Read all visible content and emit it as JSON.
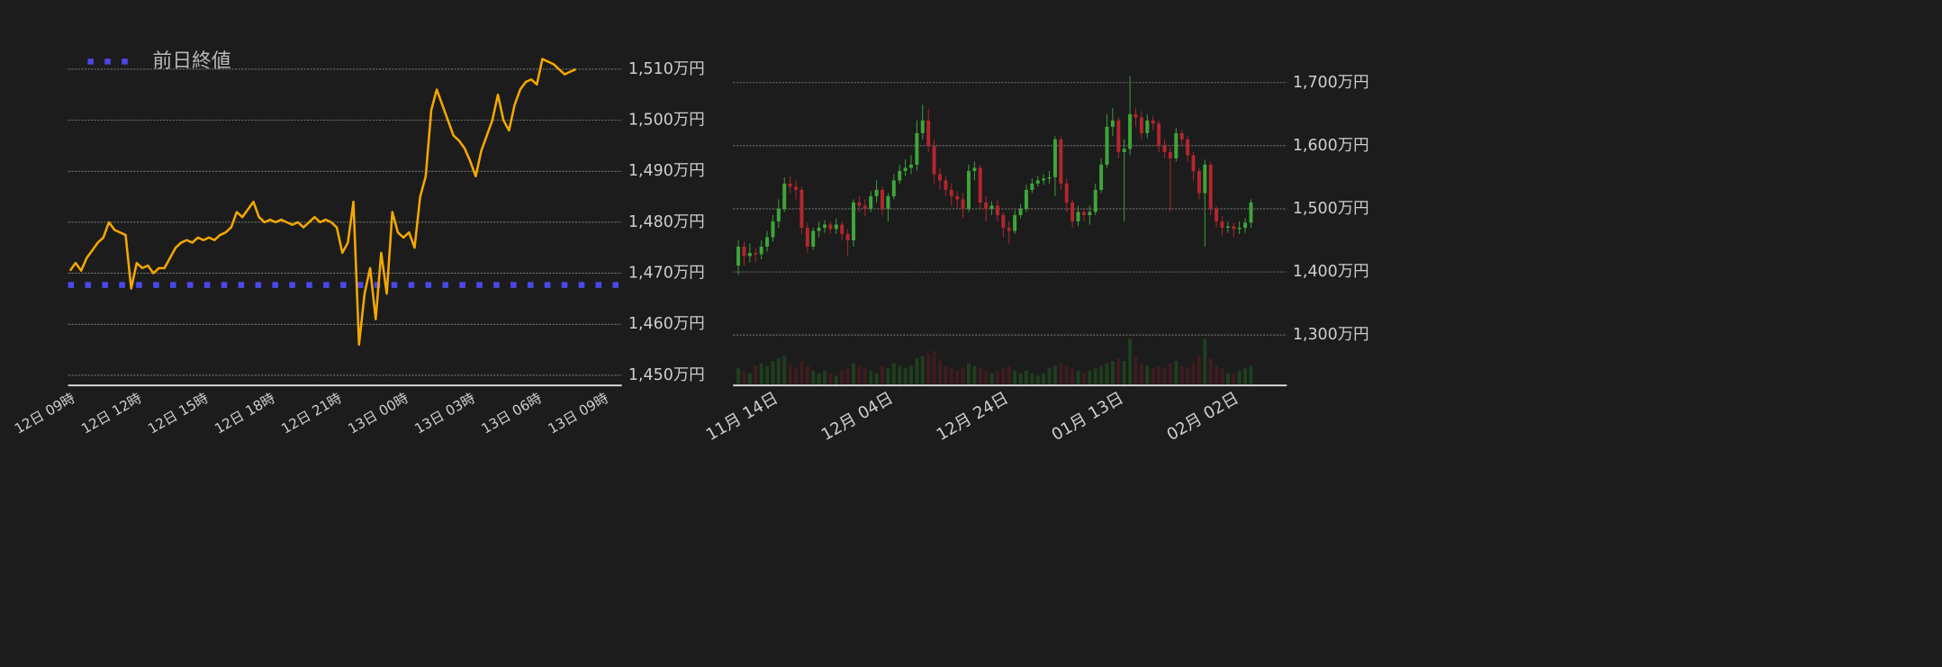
{
  "chart_data": [
    {
      "type": "line",
      "categories": [
        "12日 09時",
        null,
        null,
        null,
        null,
        null,
        null,
        null,
        null,
        null,
        null,
        null,
        "12日 12時",
        null,
        null,
        null,
        null,
        null,
        null,
        null,
        null,
        null,
        null,
        null,
        "12日 15時",
        null,
        null,
        null,
        null,
        null,
        null,
        null,
        null,
        null,
        null,
        null,
        "12日 18時",
        null,
        null,
        null,
        null,
        null,
        null,
        null,
        null,
        null,
        null,
        null,
        "12日 21時",
        null,
        null,
        null,
        null,
        null,
        null,
        null,
        null,
        null,
        null,
        null,
        "13日 00時",
        null,
        null,
        null,
        null,
        null,
        null,
        null,
        null,
        null,
        null,
        null,
        "13日 03時",
        null,
        null,
        null,
        null,
        null,
        null,
        null,
        null,
        null,
        null,
        null,
        "13日 06時",
        null,
        null,
        null,
        null,
        null,
        null,
        null,
        null,
        null,
        null,
        null,
        "13日 09時"
      ],
      "values": [
        1470.5,
        1472,
        1470.5,
        1473,
        1474.5,
        1476,
        1477,
        1480,
        1478.5,
        1478,
        1477.5,
        1467,
        1472,
        1471,
        1471.5,
        1470,
        1471,
        1471,
        1473,
        1475,
        1476,
        1476.5,
        1476,
        1477,
        1476.5,
        1477,
        1476.5,
        1477.5,
        1478,
        1479,
        1482,
        1481,
        1482.5,
        1484,
        1481,
        1480,
        1480.5,
        1480,
        1480.5,
        1480,
        1479.5,
        1480,
        1479,
        1480,
        1481,
        1480,
        1480.5,
        1480,
        1479,
        1474,
        1476,
        1484,
        1456,
        1466,
        1471,
        1461,
        1474,
        1466,
        1482,
        1478,
        1477,
        1478,
        1475,
        1485,
        1489,
        1502,
        1506,
        1503,
        1500,
        1497,
        1496,
        1494.5,
        1492,
        1489,
        1494,
        1497,
        1500,
        1505,
        1500,
        1498,
        1503,
        1506,
        1507.5,
        1508,
        1507,
        1512,
        1511.5,
        1511,
        1510,
        1509,
        1509.5,
        1510,
        null,
        null,
        null,
        null,
        null
      ],
      "color": "#f5a800",
      "reference": {
        "name": "前日終値",
        "value": 1467.7,
        "color": "#4a48e8"
      },
      "ylim": [
        1448,
        1516
      ],
      "yticks": [
        {
          "value": 1450,
          "label": "1,450万円"
        },
        {
          "value": 1460,
          "label": "1,460万円"
        },
        {
          "value": 1470,
          "label": "1,470万円"
        },
        {
          "value": 1480,
          "label": "1,480万円"
        },
        {
          "value": 1490,
          "label": "1,490万円"
        },
        {
          "value": 1500,
          "label": "1,500万円"
        },
        {
          "value": 1510,
          "label": "1,510万円"
        }
      ],
      "grid": true
    },
    {
      "type": "candlestick",
      "categories": [
        null,
        null,
        null,
        null,
        null,
        null,
        "11月 14日",
        null,
        null,
        null,
        null,
        null,
        null,
        null,
        null,
        null,
        null,
        null,
        null,
        null,
        null,
        null,
        null,
        null,
        null,
        null,
        "12月 04日",
        null,
        null,
        null,
        null,
        null,
        null,
        null,
        null,
        null,
        null,
        null,
        null,
        null,
        null,
        null,
        null,
        null,
        null,
        null,
        "12月 24日",
        null,
        null,
        null,
        null,
        null,
        null,
        null,
        null,
        null,
        null,
        null,
        null,
        null,
        null,
        null,
        null,
        null,
        null,
        null,
        "01月 13日",
        null,
        null,
        null,
        null,
        null,
        null,
        null,
        null,
        null,
        null,
        null,
        null,
        null,
        null,
        null,
        null,
        null,
        null,
        null,
        "02月 02日",
        null,
        null,
        null
      ],
      "open": [
        1410,
        1440,
        1425,
        1430,
        1428,
        1440,
        1455,
        1480,
        1500,
        1540,
        1535,
        1530,
        1470,
        1440,
        1465,
        1470,
        1475,
        1468,
        1475,
        1460,
        1450,
        1510,
        1505,
        1500,
        1520,
        1530,
        1500,
        1520,
        1545,
        1560,
        1565,
        1570,
        1620,
        1640,
        1600,
        1555,
        1545,
        1530,
        1520,
        1515,
        1500,
        1560,
        1565,
        1510,
        1500,
        1505,
        1490,
        1470,
        1465,
        1490,
        1500,
        1530,
        1540,
        1545,
        1548,
        1550,
        1610,
        1540,
        1510,
        1480,
        1495,
        1490,
        1495,
        1530,
        1570,
        1630,
        1640,
        1590,
        1595,
        1650,
        1645,
        1620,
        1640,
        1635,
        1600,
        1590,
        1580,
        1620,
        1610,
        1585,
        1560,
        1525,
        1570,
        1500,
        1480,
        1470,
        1472,
        1468,
        1470,
        1478
      ],
      "high": [
        1450,
        1448,
        1445,
        1438,
        1450,
        1465,
        1490,
        1515,
        1550,
        1552,
        1545,
        1535,
        1478,
        1470,
        1480,
        1482,
        1480,
        1485,
        1480,
        1468,
        1515,
        1520,
        1515,
        1528,
        1545,
        1535,
        1525,
        1555,
        1570,
        1578,
        1585,
        1640,
        1665,
        1658,
        1610,
        1565,
        1552,
        1540,
        1528,
        1525,
        1570,
        1575,
        1570,
        1520,
        1512,
        1515,
        1495,
        1480,
        1498,
        1508,
        1538,
        1548,
        1552,
        1555,
        1560,
        1615,
        1615,
        1548,
        1515,
        1505,
        1502,
        1505,
        1540,
        1580,
        1650,
        1660,
        1645,
        1610,
        1710,
        1660,
        1655,
        1650,
        1648,
        1640,
        1610,
        1598,
        1628,
        1625,
        1615,
        1590,
        1565,
        1578,
        1575,
        1505,
        1488,
        1480,
        1478,
        1480,
        1485,
        1515
      ],
      "low": [
        1395,
        1410,
        1415,
        1415,
        1420,
        1432,
        1448,
        1470,
        1495,
        1525,
        1515,
        1460,
        1430,
        1435,
        1455,
        1462,
        1460,
        1460,
        1450,
        1425,
        1440,
        1495,
        1488,
        1495,
        1510,
        1490,
        1480,
        1515,
        1540,
        1552,
        1555,
        1560,
        1610,
        1590,
        1540,
        1530,
        1520,
        1505,
        1500,
        1485,
        1495,
        1545,
        1500,
        1480,
        1490,
        1480,
        1455,
        1445,
        1460,
        1485,
        1495,
        1525,
        1535,
        1538,
        1540,
        1520,
        1530,
        1495,
        1470,
        1472,
        1480,
        1475,
        1490,
        1525,
        1565,
        1615,
        1580,
        1480,
        1585,
        1630,
        1610,
        1612,
        1625,
        1590,
        1580,
        1495,
        1575,
        1600,
        1575,
        1545,
        1515,
        1440,
        1490,
        1470,
        1458,
        1462,
        1455,
        1460,
        1462,
        1470
      ],
      "close": [
        1440,
        1425,
        1430,
        1428,
        1440,
        1455,
        1480,
        1500,
        1540,
        1535,
        1530,
        1470,
        1440,
        1465,
        1470,
        1475,
        1468,
        1475,
        1460,
        1450,
        1510,
        1505,
        1500,
        1520,
        1530,
        1500,
        1520,
        1545,
        1560,
        1565,
        1570,
        1620,
        1640,
        1600,
        1555,
        1545,
        1530,
        1520,
        1515,
        1500,
        1560,
        1565,
        1510,
        1500,
        1505,
        1490,
        1470,
        1465,
        1490,
        1500,
        1530,
        1540,
        1545,
        1548,
        1550,
        1610,
        1540,
        1510,
        1480,
        1495,
        1490,
        1495,
        1530,
        1570,
        1630,
        1640,
        1590,
        1595,
        1650,
        1645,
        1620,
        1640,
        1635,
        1600,
        1590,
        1580,
        1620,
        1610,
        1585,
        1560,
        1525,
        1570,
        1500,
        1480,
        1470,
        1472,
        1468,
        1470,
        1478,
        1510
      ],
      "volume": [
        35,
        30,
        25,
        40,
        45,
        40,
        50,
        55,
        60,
        45,
        35,
        50,
        40,
        30,
        25,
        30,
        25,
        20,
        30,
        35,
        45,
        40,
        35,
        30,
        25,
        40,
        35,
        45,
        40,
        35,
        40,
        55,
        60,
        65,
        70,
        50,
        40,
        35,
        30,
        35,
        45,
        40,
        35,
        30,
        25,
        30,
        35,
        40,
        30,
        25,
        30,
        25,
        20,
        25,
        35,
        40,
        45,
        40,
        35,
        30,
        25,
        30,
        35,
        40,
        45,
        50,
        55,
        50,
        95,
        60,
        45,
        40,
        35,
        40,
        35,
        45,
        50,
        40,
        35,
        45,
        60,
        95,
        55,
        40,
        35,
        25,
        25,
        30,
        35,
        40
      ],
      "up_color": "#3ea63a",
      "down_color": "#b3262e",
      "volume_up_color": "#1f3f1f",
      "volume_down_color": "#3f1c20",
      "ylim": [
        1220,
        1720
      ],
      "yticks": [
        {
          "value": 1300,
          "label": "1,300万円"
        },
        {
          "value": 1400,
          "label": "1,400万円"
        },
        {
          "value": 1500,
          "label": "1,500万円"
        },
        {
          "value": 1600,
          "label": "1,600万円"
        },
        {
          "value": 1700,
          "label": "1,700万円"
        }
      ],
      "grid": true
    }
  ]
}
